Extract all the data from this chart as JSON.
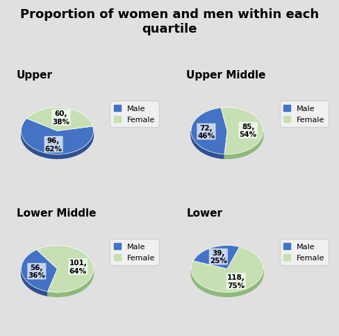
{
  "title": "Proportion of women and men within each\nquartile",
  "title_fontsize": 13,
  "title_fontweight": "bold",
  "bg_top": "#e0e0e0",
  "bg_panel": "#e8e8e8",
  "male_color": "#4472c4",
  "male_dark": "#2e5090",
  "female_color": "#c6e0b4",
  "female_dark": "#8fb87a",
  "quartiles": [
    {
      "name": "Upper",
      "male_count": 96,
      "male_pct": 62,
      "female_count": 60,
      "female_pct": 38,
      "start_angle": 148
    },
    {
      "name": "Upper Middle",
      "male_count": 72,
      "male_pct": 46,
      "female_count": 85,
      "female_pct": 54,
      "start_angle": 100
    },
    {
      "name": "Lower Middle",
      "male_count": 56,
      "male_pct": 36,
      "female_count": 101,
      "female_pct": 64,
      "start_angle": 125
    },
    {
      "name": "Lower",
      "male_count": 39,
      "male_pct": 25,
      "female_count": 118,
      "female_pct": 75,
      "start_angle": 70
    }
  ]
}
